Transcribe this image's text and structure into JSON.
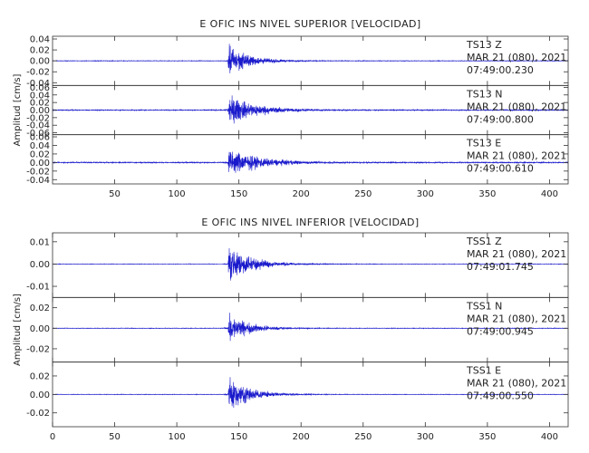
{
  "chart_data": [
    {
      "type": "line",
      "title": "E OFIC INS NIVEL SUPERIOR [VELOCIDAD]",
      "ylabel": "Amplitud [cm/s]",
      "xlabel": "",
      "xlim": [
        0,
        415
      ],
      "x_ticks": [
        50,
        100,
        150,
        200,
        250,
        300,
        350,
        400
      ],
      "grid": false,
      "line_color": "#1a1acc",
      "event_onset_x": 141,
      "traces": [
        {
          "station": "TS13",
          "component": "Z",
          "date": "MAR 21 (080), 2021",
          "time": "07:49:00.230",
          "ylim": [
            -0.045,
            0.045
          ],
          "y_ticks": [
            "0.04",
            "0.02",
            "0.00",
            "-0.02",
            "-0.04"
          ],
          "y_tick_values": [
            0.04,
            0.02,
            0.0,
            -0.02,
            -0.04
          ],
          "peak_amplitude": 0.04,
          "noise_amplitude": 0.0006,
          "decay_s": 16
        },
        {
          "station": "TS13",
          "component": "N",
          "date": "MAR 21 (080), 2021",
          "time": "07:49:00.800",
          "ylim": [
            -0.065,
            0.065
          ],
          "y_ticks": [
            "0.06",
            "0.04",
            "0.02",
            "0.00",
            "-0.02",
            "-0.04",
            "-0.06"
          ],
          "y_tick_values": [
            0.06,
            0.04,
            0.02,
            0.0,
            -0.02,
            -0.04,
            -0.06
          ],
          "peak_amplitude": 0.055,
          "noise_amplitude": 0.0015,
          "decay_s": 22
        },
        {
          "station": "TS13",
          "component": "E",
          "date": "MAR 21 (080), 2021",
          "time": "07:49:00.610",
          "ylim": [
            -0.05,
            0.065
          ],
          "y_ticks": [
            "0.06",
            "0.04",
            "0.02",
            "0.00",
            "-0.02",
            "-0.04"
          ],
          "y_tick_values": [
            0.06,
            0.04,
            0.02,
            0.0,
            -0.02,
            -0.04
          ],
          "peak_amplitude": 0.045,
          "noise_amplitude": 0.0015,
          "decay_s": 24
        }
      ]
    },
    {
      "type": "line",
      "title": "E OFIC INS NIVEL INFERIOR [VELOCIDAD]",
      "ylabel": "Amplitud [cm/s]",
      "xlabel": "",
      "xlim": [
        0,
        415
      ],
      "x_ticks": [
        0,
        50,
        100,
        150,
        200,
        250,
        300,
        350,
        400
      ],
      "grid": false,
      "line_color": "#1a1acc",
      "event_onset_x": 141,
      "traces": [
        {
          "station": "TSS1",
          "component": "Z",
          "date": "MAR 21 (080), 2021",
          "time": "07:49:01.745",
          "ylim": [
            -0.015,
            0.014
          ],
          "y_ticks": [
            "0.01",
            "0.00",
            "-0.01"
          ],
          "y_tick_values": [
            0.01,
            0.0,
            -0.01
          ],
          "peak_amplitude": 0.012,
          "noise_amplitude": 0.00012,
          "decay_s": 18
        },
        {
          "station": "TSS1",
          "component": "N",
          "date": "MAR 21 (080), 2021",
          "time": "07:49:00.945",
          "ylim": [
            -0.033,
            0.03
          ],
          "y_ticks": [
            "0.02",
            "0.00",
            "-0.02"
          ],
          "y_tick_values": [
            0.02,
            0.0,
            -0.02
          ],
          "peak_amplitude": 0.02,
          "noise_amplitude": 0.0003,
          "decay_s": 16
        },
        {
          "station": "TSS1",
          "component": "E",
          "date": "MAR 21 (080), 2021",
          "time": "07:49:00.550",
          "ylim": [
            -0.035,
            0.035
          ],
          "y_ticks": [
            "0.02",
            "0.00",
            "-0.02"
          ],
          "y_tick_values": [
            0.02,
            0.0,
            -0.02
          ],
          "peak_amplitude": 0.028,
          "noise_amplitude": 0.0003,
          "decay_s": 16
        }
      ]
    }
  ]
}
